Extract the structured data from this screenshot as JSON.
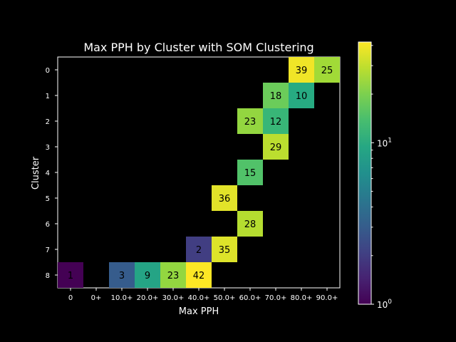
{
  "chart_data": {
    "type": "heatmap",
    "title": "Max PPH by Cluster with SOM Clustering",
    "xlabel": "Max PPH",
    "ylabel": "Cluster",
    "x_categories": [
      "0",
      "0+",
      "10.0+",
      "20.0+",
      "30.0+",
      "40.0+",
      "50.0+",
      "60.0+",
      "70.0+",
      "80.0+",
      "90.0+"
    ],
    "y_categories": [
      "0",
      "1",
      "2",
      "3",
      "4",
      "5",
      "6",
      "7",
      "8"
    ],
    "cells": [
      {
        "cluster": "0",
        "bin": "80.0+",
        "value": 39
      },
      {
        "cluster": "0",
        "bin": "90.0+",
        "value": 25
      },
      {
        "cluster": "1",
        "bin": "70.0+",
        "value": 18
      },
      {
        "cluster": "1",
        "bin": "80.0+",
        "value": 10
      },
      {
        "cluster": "2",
        "bin": "60.0+",
        "value": 23
      },
      {
        "cluster": "2",
        "bin": "70.0+",
        "value": 12
      },
      {
        "cluster": "3",
        "bin": "70.0+",
        "value": 29
      },
      {
        "cluster": "4",
        "bin": "60.0+",
        "value": 15
      },
      {
        "cluster": "5",
        "bin": "50.0+",
        "value": 36
      },
      {
        "cluster": "6",
        "bin": "60.0+",
        "value": 28
      },
      {
        "cluster": "7",
        "bin": "40.0+",
        "value": 2
      },
      {
        "cluster": "7",
        "bin": "50.0+",
        "value": 35
      },
      {
        "cluster": "8",
        "bin": "0",
        "value": 1
      },
      {
        "cluster": "8",
        "bin": "10.0+",
        "value": 3
      },
      {
        "cluster": "8",
        "bin": "20.0+",
        "value": 9
      },
      {
        "cluster": "8",
        "bin": "30.0+",
        "value": 23
      },
      {
        "cluster": "8",
        "bin": "40.0+",
        "value": 42
      }
    ],
    "colorbar": {
      "scale": "log",
      "range": [
        1,
        42
      ],
      "colormap": "viridis",
      "major_ticks": [
        {
          "value": 1,
          "label": "10",
          "exp": "0"
        },
        {
          "value": 10,
          "label": "10",
          "exp": "1"
        }
      ]
    },
    "background_color": "#000000",
    "grid": false
  }
}
